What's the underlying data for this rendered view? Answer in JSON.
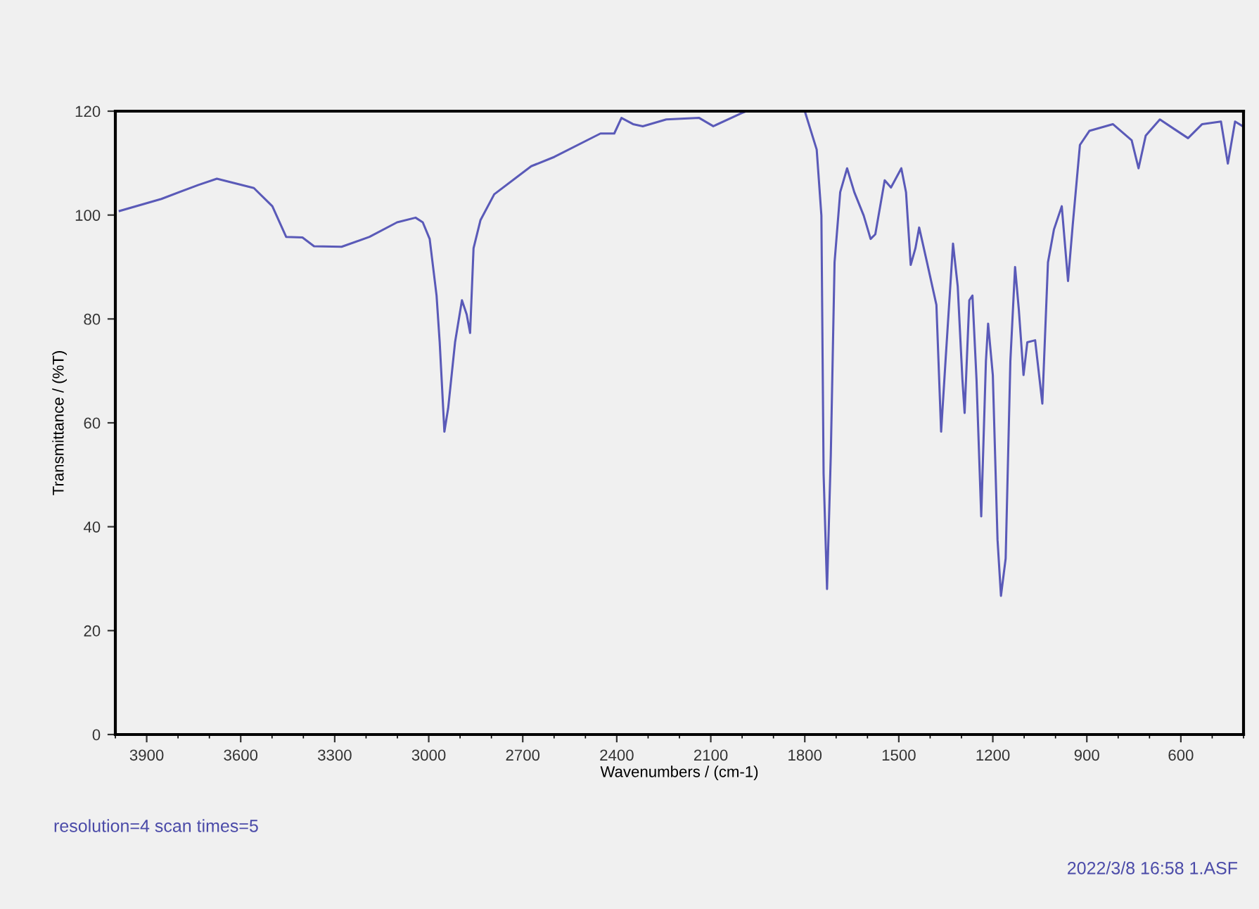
{
  "chart_data": {
    "type": "line",
    "xlabel": "Wavenumbers / (cm-1)",
    "ylabel": "Transmittance / (%T)",
    "xlim": [
      4000,
      400
    ],
    "ylim": [
      0,
      120
    ],
    "xticks": [
      3900,
      3600,
      3300,
      3000,
      2700,
      2400,
      2100,
      1800,
      1500,
      1200,
      900,
      600
    ],
    "yticks": [
      0,
      20,
      40,
      60,
      80,
      100,
      120
    ],
    "grid": false,
    "legend": false,
    "marker": "none",
    "line_style": "solid",
    "series": [
      {
        "color": "#5a5ab8",
        "x": [
          3986,
          3853,
          3735,
          3676,
          3558,
          3499,
          3455,
          3403,
          3366,
          3278,
          3189,
          3101,
          3042,
          3019,
          2997,
          2975,
          2965,
          2950,
          2938,
          2916,
          2894,
          2879,
          2868,
          2857,
          2835,
          2791,
          2673,
          2599,
          2452,
          2408,
          2385,
          2348,
          2317,
          2242,
          2137,
          2092,
          2002,
          1987,
          1800,
          1762,
          1747,
          1740,
          1729,
          1717,
          1705,
          1687,
          1665,
          1642,
          1612,
          1590,
          1575,
          1545,
          1525,
          1492,
          1477,
          1462,
          1447,
          1435,
          1410,
          1380,
          1365,
          1350,
          1327,
          1312,
          1297,
          1290,
          1275,
          1265,
          1252,
          1237,
          1222,
          1215,
          1200,
          1185,
          1174,
          1159,
          1144,
          1129,
          1117,
          1102,
          1090,
          1065,
          1042,
          1024,
          1005,
          980,
          960,
          945,
          922,
          892,
          817,
          757,
          735,
          712,
          667,
          622,
          577,
          532,
          472,
          450,
          427,
          400
        ],
        "values": [
          100.8,
          103.1,
          105.8,
          107,
          105.2,
          101.7,
          95.8,
          95.7,
          94,
          93.9,
          95.8,
          98.6,
          99.5,
          98.6,
          95.4,
          84.5,
          75.5,
          58.3,
          62.8,
          75.5,
          83.6,
          80.9,
          77.3,
          93.6,
          99,
          104,
          109.4,
          111.2,
          115.7,
          115.7,
          118.7,
          117.5,
          117.1,
          118.4,
          118.7,
          117.1,
          119.6,
          120,
          120,
          112.6,
          99.9,
          50.2,
          28,
          53.8,
          90.9,
          104.4,
          109,
          104.4,
          99.9,
          95.4,
          96.3,
          106.7,
          105.3,
          109,
          104.4,
          90.4,
          93.6,
          97.6,
          90.9,
          82.7,
          58.3,
          72.8,
          94.5,
          86.3,
          68.3,
          61.9,
          83.6,
          84.5,
          68.3,
          42,
          71.9,
          79.1,
          69.2,
          37.5,
          26.7,
          33.9,
          71.9,
          90,
          81.8,
          69.2,
          75.5,
          75.9,
          63.7,
          90.9,
          97.2,
          101.7,
          87.3,
          98.1,
          113.5,
          116.2,
          117.5,
          114.4,
          109,
          115.3,
          118.4,
          116.6,
          114.8,
          117.5,
          118,
          109.9,
          118,
          117
        ]
      }
    ],
    "annotations": [
      "resolution=4 scan times=5",
      "2022/3/8 16:58 1.ASF"
    ]
  }
}
